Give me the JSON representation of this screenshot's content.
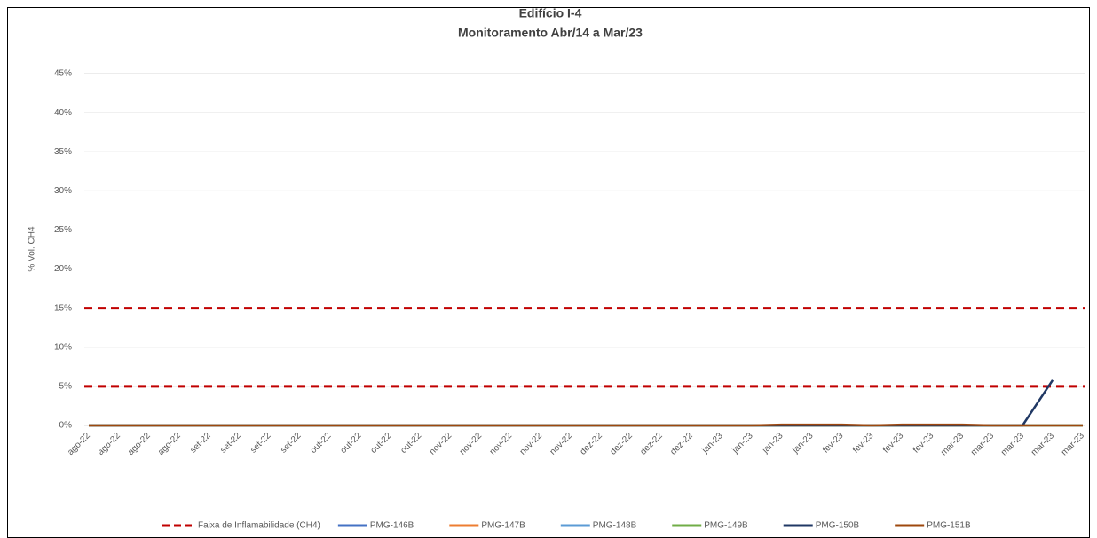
{
  "chart_data": {
    "type": "line",
    "title": "Edifício I-4",
    "subtitle": "Monitoramento Abr/14 a Mar/23",
    "y_label": "% Vol. CH4",
    "categories": [
      "ago-22",
      "ago-22",
      "ago-22",
      "ago-22",
      "set-22",
      "set-22",
      "set-22",
      "set-22",
      "out-22",
      "out-22",
      "out-22",
      "out-22",
      "nov-22",
      "nov-22",
      "nov-22",
      "nov-22",
      "nov-22",
      "dez-22",
      "dez-22",
      "dez-22",
      "dez-22",
      "jan-23",
      "jan-23",
      "jan-23",
      "jan-23",
      "fev-23",
      "fev-23",
      "fev-23",
      "fev-23",
      "mar-23",
      "mar-23",
      "mar-23",
      "mar-23",
      "mar-23"
    ],
    "band": {
      "name": "Faixa de Inflamabilidade (CH4)",
      "color": "#c00000",
      "levels": [
        5,
        15
      ]
    },
    "series": [
      {
        "name": "PMG-146B",
        "color": "#4472c4",
        "values": [
          0,
          0,
          0,
          0,
          0,
          0,
          0,
          0,
          0,
          0,
          0,
          0,
          0,
          0,
          0,
          0,
          0,
          0,
          0,
          0,
          0,
          0,
          0,
          0,
          0,
          0,
          0,
          0,
          0,
          0,
          0,
          0,
          0,
          0
        ]
      },
      {
        "name": "PMG-147B",
        "color": "#ed7d31",
        "values": [
          0,
          0,
          0,
          0,
          0,
          0,
          0,
          0,
          0,
          0,
          0,
          0,
          0,
          0,
          0,
          0,
          0,
          0,
          0,
          0,
          0,
          0,
          0,
          0,
          0,
          0,
          0,
          0,
          0,
          0,
          0,
          0,
          0,
          0
        ]
      },
      {
        "name": "PMG-148B",
        "color": "#5b9bd5",
        "values": [
          0,
          0,
          0,
          0,
          0,
          0,
          0,
          0,
          0,
          0,
          0,
          0,
          0,
          0,
          0,
          0,
          0,
          0,
          0,
          0,
          0,
          0,
          0,
          0,
          0,
          0,
          0,
          0,
          0,
          0,
          0,
          0,
          0,
          0
        ]
      },
      {
        "name": "PMG-149B",
        "color": "#70ad47",
        "values": [
          0,
          0,
          0,
          0,
          0,
          0,
          0,
          0,
          0,
          0,
          0,
          0,
          0,
          0,
          0,
          0,
          0,
          0,
          0,
          0,
          0,
          0,
          0,
          0,
          0,
          0,
          0,
          0,
          0,
          0,
          0,
          0,
          0,
          0
        ]
      },
      {
        "name": "PMG-150B",
        "color": "#203864",
        "values": [
          0,
          0,
          0,
          0,
          0,
          0,
          0,
          0,
          0,
          0,
          0,
          0,
          0,
          0,
          0,
          0,
          0,
          0,
          0,
          0,
          0,
          0,
          0,
          0,
          0,
          0,
          0,
          0,
          0,
          0,
          0,
          0,
          5.8,
          null
        ]
      },
      {
        "name": "PMG-151B",
        "color": "#9e480e",
        "values": [
          0,
          0,
          0,
          0,
          0,
          0,
          0,
          0,
          0,
          0,
          0,
          0,
          0,
          0,
          0,
          0,
          0,
          0,
          0,
          0,
          0,
          0,
          0,
          0.1,
          0.1,
          0.1,
          0,
          0.1,
          0.1,
          0.1,
          0,
          0,
          0,
          0
        ]
      }
    ],
    "ylim": [
      0,
      45
    ],
    "yticks": [
      {
        "value": 0,
        "label": "0%"
      },
      {
        "value": 5,
        "label": "5%"
      },
      {
        "value": 10,
        "label": "10%"
      },
      {
        "value": 15,
        "label": "15%"
      },
      {
        "value": 20,
        "label": "20%"
      },
      {
        "value": 25,
        "label": "25%"
      },
      {
        "value": 30,
        "label": "30%"
      },
      {
        "value": 35,
        "label": "35%"
      },
      {
        "value": 40,
        "label": "40%"
      },
      {
        "value": 45,
        "label": "45%"
      }
    ],
    "grid": true
  }
}
